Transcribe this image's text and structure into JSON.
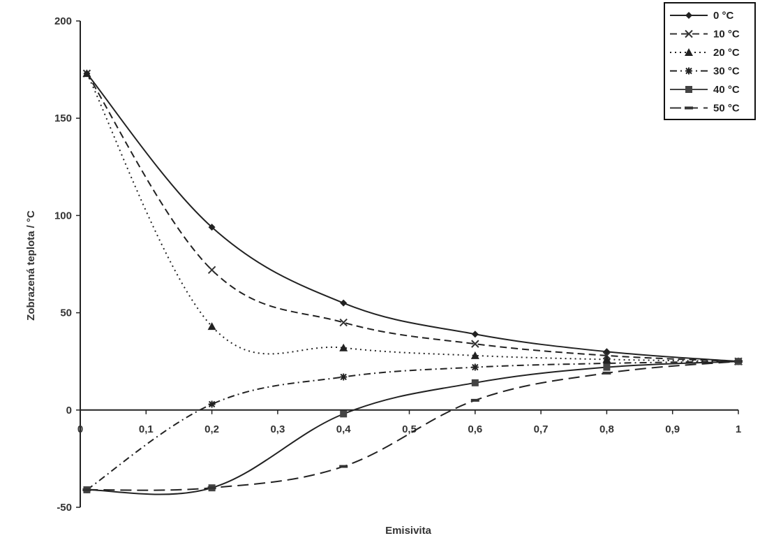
{
  "chart_data": {
    "type": "line",
    "title": "",
    "xlabel": "Emisivita",
    "ylabel": "Zobrazená teplota / °C",
    "xlim": [
      0,
      1
    ],
    "ylim": [
      -50,
      200
    ],
    "x_ticks": [
      0,
      0.1,
      0.2,
      0.3,
      0.4,
      0.5,
      0.6,
      0.7,
      0.8,
      0.9,
      1
    ],
    "x_tick_labels": [
      "0",
      "0,1",
      "0,2",
      "0,3",
      "0,4",
      "0,5",
      "0,6",
      "0,7",
      "0,8",
      "0,9",
      "1"
    ],
    "y_ticks": [
      -50,
      0,
      50,
      100,
      150,
      200
    ],
    "y_tick_labels": [
      "-50",
      "0",
      "50",
      "100",
      "150",
      "200"
    ],
    "grid": false,
    "legend_position": "top-right",
    "x": [
      0.01,
      0.2,
      0.4,
      0.6,
      0.8,
      1
    ],
    "series": [
      {
        "name": "0 °C",
        "values": [
          173,
          94,
          55,
          39,
          30,
          25
        ],
        "marker": "diamond",
        "dash": "solid"
      },
      {
        "name": "10 °C",
        "values": [
          173,
          72,
          45,
          34,
          28,
          25
        ],
        "marker": "x",
        "dash": "dashed"
      },
      {
        "name": "20 °C",
        "values": [
          173,
          43,
          32,
          28,
          26,
          25
        ],
        "marker": "triangle",
        "dash": "dotted"
      },
      {
        "name": "30 °C",
        "values": [
          -41,
          3,
          17,
          22,
          24,
          25
        ],
        "marker": "star",
        "dash": "dashdot"
      },
      {
        "name": "40 °C",
        "values": [
          -41,
          -40,
          -2,
          14,
          22,
          25
        ],
        "marker": "square",
        "dash": "solid-gray"
      },
      {
        "name": "50 °C",
        "values": [
          -41,
          -40,
          -29,
          5,
          19,
          25
        ],
        "marker": "dash",
        "dash": "longdash"
      }
    ]
  }
}
